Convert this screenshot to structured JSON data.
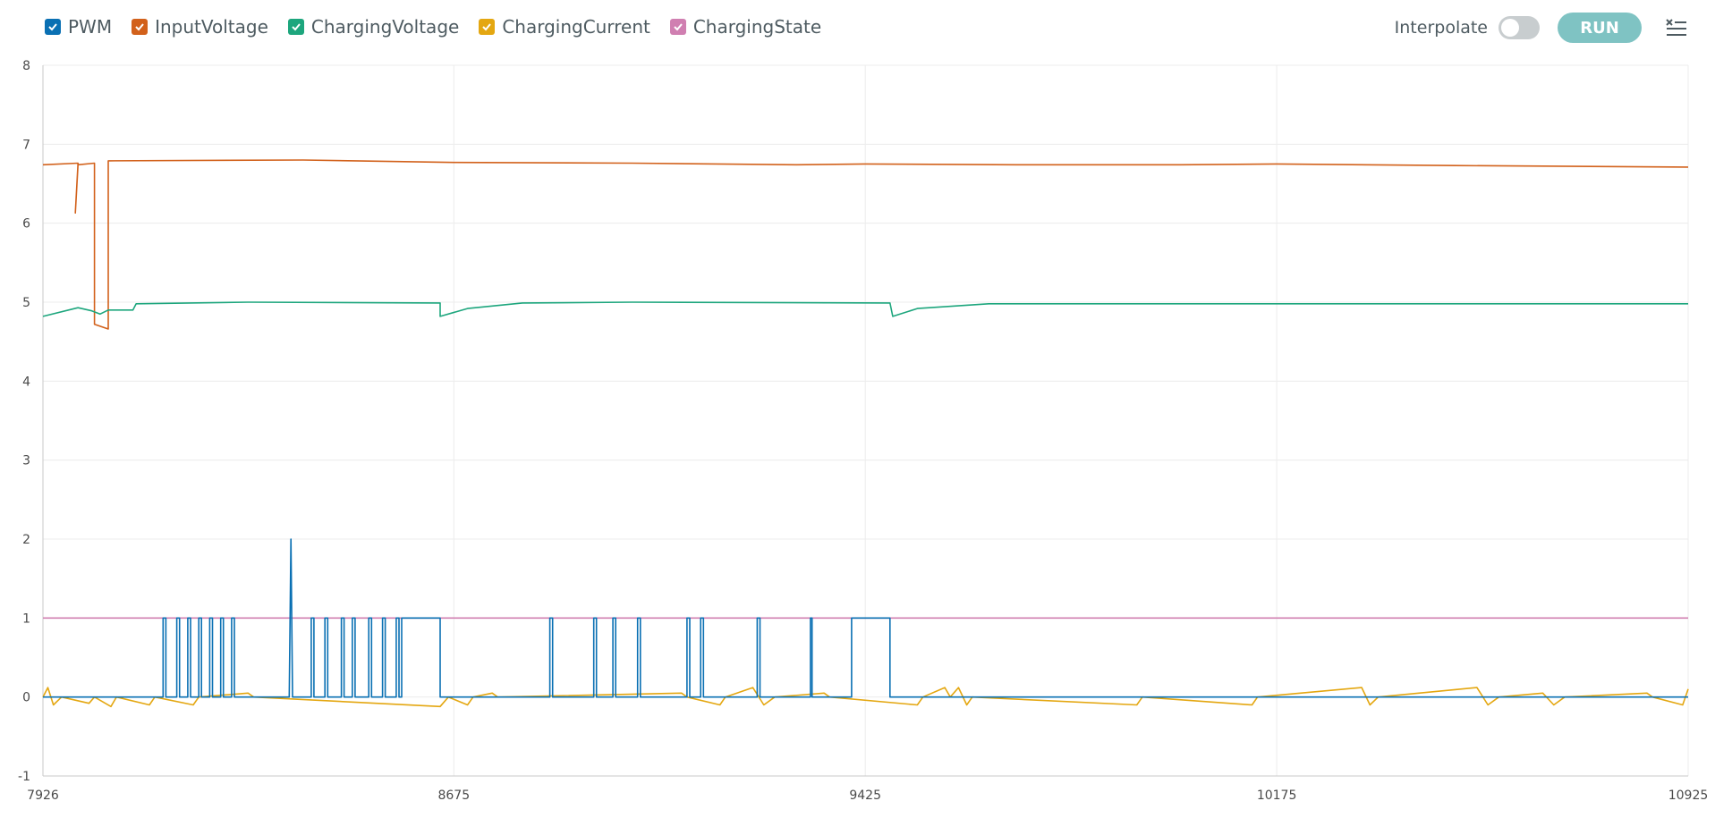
{
  "toolbar": {
    "legend": [
      {
        "label": "PWM",
        "color": "#0a70b3"
      },
      {
        "label": "InputVoltage",
        "color": "#d2611b"
      },
      {
        "label": "ChargingVoltage",
        "color": "#1da67d"
      },
      {
        "label": "ChargingCurrent",
        "color": "#e4a711"
      },
      {
        "label": "ChargingState",
        "color": "#d07fb1"
      }
    ],
    "interpolate_label": "Interpolate",
    "interpolate_on": false,
    "run_label": "RUN",
    "menu_icon": "clear-list-icon"
  },
  "chart_data": {
    "type": "line",
    "xlim": [
      7926,
      10925
    ],
    "ylim": [
      -1,
      8
    ],
    "x_ticks": [
      7926,
      8675,
      9425,
      10175,
      10925
    ],
    "y_ticks": [
      -1,
      0,
      1,
      2,
      3,
      4,
      5,
      6,
      7,
      8
    ],
    "grid": true,
    "series": [
      {
        "name": "InputVoltage",
        "color": "#d2611b",
        "points": [
          [
            7926,
            6.74
          ],
          [
            7990,
            6.76
          ],
          [
            7985,
            6.13
          ],
          [
            7990,
            6.74
          ],
          [
            8020,
            6.76
          ],
          [
            8020,
            4.72
          ],
          [
            8045,
            4.66
          ],
          [
            8045,
            6.79
          ],
          [
            8400,
            6.8
          ],
          [
            8675,
            6.77
          ],
          [
            9000,
            6.76
          ],
          [
            9300,
            6.74
          ],
          [
            9425,
            6.75
          ],
          [
            9700,
            6.74
          ],
          [
            10000,
            6.74
          ],
          [
            10175,
            6.75
          ],
          [
            10500,
            6.73
          ],
          [
            10925,
            6.71
          ]
        ]
      },
      {
        "name": "ChargingVoltage",
        "color": "#1da67d",
        "points": [
          [
            7926,
            4.82
          ],
          [
            7990,
            4.93
          ],
          [
            8015,
            4.89
          ],
          [
            8030,
            4.85
          ],
          [
            8045,
            4.9
          ],
          [
            8090,
            4.9
          ],
          [
            8096,
            4.98
          ],
          [
            8300,
            5.0
          ],
          [
            8650,
            4.99
          ],
          [
            8650,
            4.82
          ],
          [
            8700,
            4.92
          ],
          [
            8800,
            4.99
          ],
          [
            9000,
            5.0
          ],
          [
            9470,
            4.99
          ],
          [
            9475,
            4.82
          ],
          [
            9520,
            4.92
          ],
          [
            9650,
            4.98
          ],
          [
            10000,
            4.98
          ],
          [
            10925,
            4.98
          ]
        ]
      },
      {
        "name": "ChargingState",
        "color": "#d07fb1",
        "points": [
          [
            7926,
            1.0
          ],
          [
            10925,
            1.0
          ]
        ]
      },
      {
        "name": "ChargingCurrent",
        "color": "#e4a711",
        "points": [
          [
            7926,
            0.0
          ],
          [
            7935,
            0.12
          ],
          [
            7945,
            -0.1
          ],
          [
            7960,
            0.0
          ],
          [
            8010,
            -0.08
          ],
          [
            8020,
            0.0
          ],
          [
            8050,
            -0.12
          ],
          [
            8060,
            0.0
          ],
          [
            8120,
            -0.1
          ],
          [
            8130,
            0.0
          ],
          [
            8200,
            -0.1
          ],
          [
            8210,
            0.0
          ],
          [
            8300,
            0.05
          ],
          [
            8310,
            0.0
          ],
          [
            8650,
            -0.12
          ],
          [
            8665,
            0.0
          ],
          [
            8700,
            -0.1
          ],
          [
            8710,
            0.0
          ],
          [
            8745,
            0.05
          ],
          [
            8755,
            0.0
          ],
          [
            9090,
            0.05
          ],
          [
            9100,
            0.0
          ],
          [
            9160,
            -0.1
          ],
          [
            9170,
            0.0
          ],
          [
            9220,
            0.12
          ],
          [
            9240,
            -0.1
          ],
          [
            9260,
            0.0
          ],
          [
            9350,
            0.05
          ],
          [
            9360,
            0.0
          ],
          [
            9520,
            -0.1
          ],
          [
            9530,
            0.0
          ],
          [
            9570,
            0.12
          ],
          [
            9580,
            0.0
          ],
          [
            9595,
            0.12
          ],
          [
            9610,
            -0.1
          ],
          [
            9620,
            0.0
          ],
          [
            9920,
            -0.1
          ],
          [
            9930,
            0.0
          ],
          [
            10130,
            -0.1
          ],
          [
            10140,
            0.0
          ],
          [
            10330,
            0.12
          ],
          [
            10345,
            -0.1
          ],
          [
            10360,
            0.0
          ],
          [
            10540,
            0.12
          ],
          [
            10560,
            -0.1
          ],
          [
            10580,
            0.0
          ],
          [
            10660,
            0.05
          ],
          [
            10680,
            -0.1
          ],
          [
            10700,
            0.0
          ],
          [
            10850,
            0.05
          ],
          [
            10860,
            0.0
          ],
          [
            10915,
            -0.1
          ],
          [
            10925,
            0.1
          ]
        ]
      },
      {
        "name": "PWM",
        "color": "#0a70b3",
        "points": [
          [
            7926,
            0
          ],
          [
            8145,
            0
          ],
          [
            8145,
            1
          ],
          [
            8150,
            1
          ],
          [
            8150,
            0
          ],
          [
            8170,
            0
          ],
          [
            8170,
            1
          ],
          [
            8175,
            1
          ],
          [
            8175,
            0
          ],
          [
            8190,
            0
          ],
          [
            8190,
            1
          ],
          [
            8195,
            1
          ],
          [
            8195,
            0
          ],
          [
            8210,
            0
          ],
          [
            8210,
            1
          ],
          [
            8215,
            1
          ],
          [
            8215,
            0
          ],
          [
            8230,
            0
          ],
          [
            8230,
            1
          ],
          [
            8235,
            1
          ],
          [
            8235,
            0
          ],
          [
            8250,
            0
          ],
          [
            8250,
            1
          ],
          [
            8255,
            1
          ],
          [
            8255,
            0
          ],
          [
            8270,
            0
          ],
          [
            8270,
            1
          ],
          [
            8275,
            1
          ],
          [
            8275,
            0
          ],
          [
            8375,
            0
          ],
          [
            8378,
            2
          ],
          [
            8381,
            0
          ],
          [
            8415,
            0
          ],
          [
            8415,
            1
          ],
          [
            8420,
            1
          ],
          [
            8420,
            0
          ],
          [
            8440,
            0
          ],
          [
            8440,
            1
          ],
          [
            8445,
            1
          ],
          [
            8445,
            0
          ],
          [
            8470,
            0
          ],
          [
            8470,
            1
          ],
          [
            8475,
            1
          ],
          [
            8475,
            0
          ],
          [
            8490,
            0
          ],
          [
            8490,
            1
          ],
          [
            8495,
            1
          ],
          [
            8495,
            0
          ],
          [
            8520,
            0
          ],
          [
            8520,
            1
          ],
          [
            8525,
            1
          ],
          [
            8525,
            0
          ],
          [
            8545,
            0
          ],
          [
            8545,
            1
          ],
          [
            8550,
            1
          ],
          [
            8550,
            0
          ],
          [
            8570,
            0
          ],
          [
            8570,
            1
          ],
          [
            8575,
            1
          ],
          [
            8575,
            0
          ],
          [
            8580,
            0
          ],
          [
            8580,
            1
          ],
          [
            8650,
            1
          ],
          [
            8650,
            0
          ],
          [
            8850,
            0
          ],
          [
            8850,
            1
          ],
          [
            8855,
            1
          ],
          [
            8855,
            0
          ],
          [
            8930,
            0
          ],
          [
            8930,
            1
          ],
          [
            8935,
            1
          ],
          [
            8935,
            0
          ],
          [
            8965,
            0
          ],
          [
            8965,
            1
          ],
          [
            8970,
            1
          ],
          [
            8970,
            0
          ],
          [
            9010,
            0
          ],
          [
            9010,
            1
          ],
          [
            9015,
            1
          ],
          [
            9015,
            0
          ],
          [
            9100,
            0
          ],
          [
            9100,
            1
          ],
          [
            9105,
            1
          ],
          [
            9105,
            0
          ],
          [
            9125,
            0
          ],
          [
            9125,
            1
          ],
          [
            9130,
            1
          ],
          [
            9130,
            0
          ],
          [
            9228,
            0
          ],
          [
            9228,
            1
          ],
          [
            9233,
            1
          ],
          [
            9233,
            0
          ],
          [
            9325,
            0
          ],
          [
            9325,
            1
          ],
          [
            9328,
            1
          ],
          [
            9328,
            0
          ],
          [
            9400,
            0
          ],
          [
            9400,
            1
          ],
          [
            9470,
            1
          ],
          [
            9470,
            0
          ],
          [
            10925,
            0
          ]
        ]
      }
    ]
  }
}
